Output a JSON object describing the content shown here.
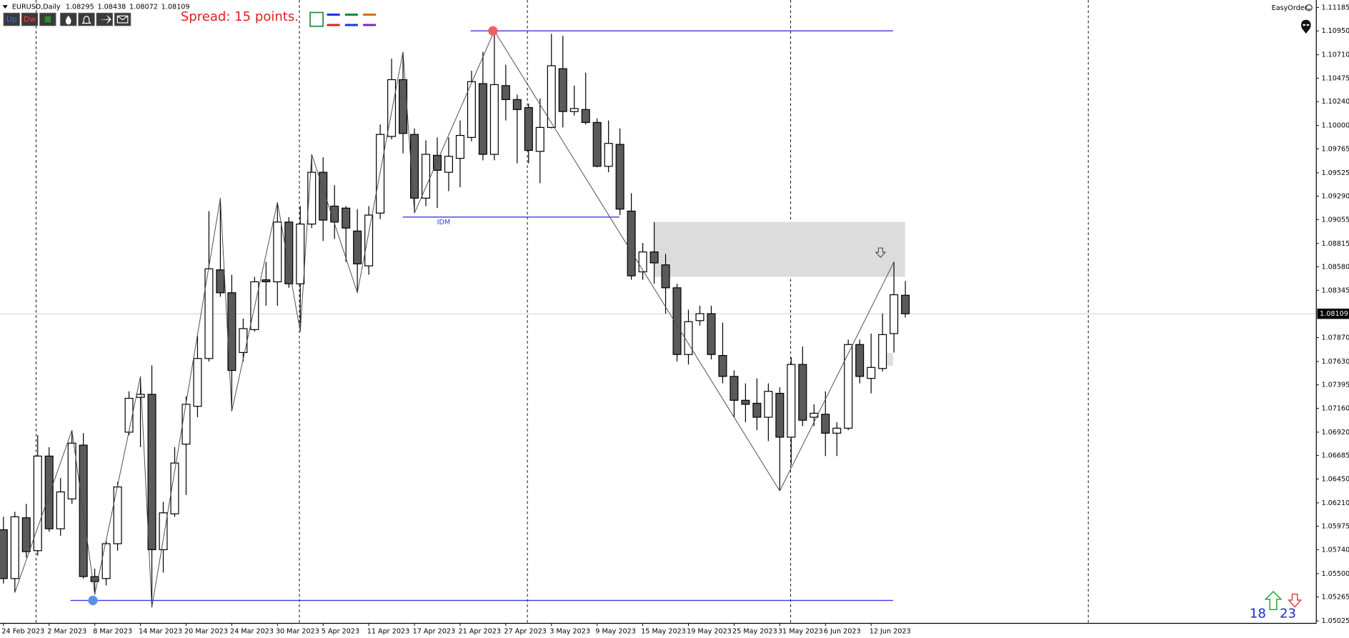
{
  "toolbar": {
    "symbol": "EURUSD,Daily",
    "buttons": [
      "Up",
      "Dw"
    ],
    "spread": "Spread: 15 points.",
    "easy_order": "EasyOrder",
    "bull_count": 18,
    "bear_count": 23
  },
  "chart_data": {
    "type": "candlestick",
    "categories": [
      "24 Feb 2023",
      null,
      null,
      null,
      "2 Mar 2023",
      null,
      null,
      null,
      "8 Mar 2023",
      null,
      null,
      null,
      "14 Mar 2023",
      null,
      null,
      null,
      "20 Mar 2023",
      null,
      null,
      null,
      "24 Mar 2023",
      null,
      null,
      null,
      "30 Mar 2023",
      null,
      null,
      null,
      "5 Apr 2023",
      null,
      null,
      null,
      "11 Apr 2023",
      null,
      null,
      null,
      "17 Apr 2023",
      null,
      null,
      null,
      "21 Apr 2023",
      null,
      null,
      null,
      "27 Apr 2023",
      null,
      null,
      null,
      "3 May 2023",
      null,
      null,
      null,
      "9 May 2023",
      null,
      null,
      null,
      "15 May 2023",
      null,
      null,
      null,
      "19 May 2023",
      null,
      null,
      null,
      "25 May 2023",
      null,
      null,
      null,
      "31 May 2023",
      null,
      null,
      null,
      "6 Jun 2023",
      null,
      null,
      null,
      "12 Jun 2023",
      null,
      null,
      null
    ],
    "open": [
      1.0594,
      1.0545,
      1.0606,
      1.0573,
      1.0668,
      1.0595,
      1.0625,
      1.0679,
      1.0547,
      1.0545,
      1.058,
      1.0692,
      1.0727,
      1.073,
      1.0574,
      1.061,
      1.068,
      1.0718,
      1.0766,
      1.0855,
      1.0832,
      1.0772,
      1.0795,
      1.0845,
      1.0843,
      1.0903,
      1.0841,
      1.0901,
      1.0953,
      1.0919,
      1.0917,
      1.0894,
      1.0859,
      1.0912,
      1.0989,
      1.1046,
      1.0991,
      1.0927,
      1.097,
      1.0953,
      1.0967,
      1.0988,
      1.1042,
      1.0971,
      1.104,
      1.1026,
      1.1018,
      1.0974,
      1.0998,
      1.1057,
      1.1014,
      1.1016,
      1.1003,
      1.0959,
      1.0981,
      1.0914,
      1.0853,
      1.0873,
      1.086,
      1.0837,
      1.077,
      1.0804,
      1.0811,
      1.0769,
      1.0748,
      1.0724,
      1.0721,
      1.0707,
      1.0731,
      1.0687,
      1.076,
      1.0707,
      1.071,
      1.0691,
      1.0696,
      1.078,
      1.0746,
      1.0756,
      1.0791,
      1.08295
    ],
    "high": [
      1.0607,
      1.0612,
      1.062,
      1.0689,
      1.0677,
      1.0646,
      1.0694,
      1.0691,
      1.0555,
      1.0583,
      1.0642,
      1.0733,
      1.0748,
      1.0759,
      1.0622,
      1.0677,
      1.0728,
      1.0789,
      1.0914,
      1.0927,
      1.085,
      1.0806,
      1.0848,
      1.0863,
      1.0923,
      1.0908,
      1.0919,
      1.0971,
      1.0968,
      1.094,
      1.0919,
      1.0916,
      1.0919,
      1.1001,
      1.1067,
      1.1074,
      1.0997,
      1.0985,
      1.0988,
      1.0988,
      1.1005,
      1.1055,
      1.1074,
      1.1095,
      1.1061,
      1.1031,
      1.1022,
      1.1027,
      1.1092,
      1.109,
      1.104,
      1.1053,
      1.1007,
      1.1005,
      1.0997,
      1.0932,
      1.0882,
      1.0903,
      1.0871,
      1.0841,
      1.0815,
      1.0819,
      1.0819,
      1.0802,
      1.0754,
      1.0741,
      1.0746,
      1.0741,
      1.0737,
      1.0767,
      1.0778,
      1.072,
      1.0733,
      1.0702,
      1.0785,
      1.0785,
      1.0791,
      1.0811,
      1.0863,
      1.08438
    ],
    "low": [
      1.054,
      1.0531,
      1.0566,
      1.0568,
      1.0592,
      1.0588,
      1.062,
      1.0545,
      1.0529,
      1.0538,
      1.0573,
      1.0689,
      1.0677,
      1.0516,
      1.0551,
      1.0607,
      1.0629,
      1.0707,
      1.0763,
      1.0828,
      1.0713,
      1.0763,
      1.0793,
      1.0819,
      1.0819,
      1.0837,
      1.0793,
      1.0897,
      1.0884,
      1.0886,
      1.0863,
      1.0832,
      1.085,
      1.0906,
      1.0986,
      1.0972,
      1.0912,
      1.0919,
      1.0917,
      1.0934,
      1.0938,
      1.0984,
      1.0965,
      1.0965,
      1.1005,
      1.0962,
      1.0962,
      1.0942,
      1.0997,
      1.0998,
      1.101,
      1.1001,
      1.0958,
      1.0953,
      1.091,
      1.0845,
      1.0845,
      1.0841,
      1.0811,
      1.0763,
      1.076,
      1.0799,
      1.0765,
      1.0741,
      1.0707,
      1.0702,
      1.0694,
      1.0683,
      1.0633,
      1.0659,
      1.0698,
      1.0698,
      1.0668,
      1.0668,
      1.0694,
      1.0741,
      1.0731,
      1.0753,
      1.0772,
      1.08072
    ],
    "close": [
      1.0545,
      1.0607,
      1.0572,
      1.0668,
      1.0595,
      1.0632,
      1.0681,
      1.0547,
      1.0542,
      1.058,
      1.0637,
      1.0726,
      1.073,
      1.0574,
      1.0611,
      1.0661,
      1.072,
      1.0766,
      1.0856,
      1.0832,
      1.0754,
      1.0796,
      1.0843,
      1.0843,
      1.0903,
      1.0841,
      1.0901,
      1.0953,
      1.0905,
      1.0903,
      1.0897,
      1.0861,
      1.091,
      1.0991,
      1.1046,
      1.0992,
      1.0927,
      1.0971,
      1.0955,
      1.0969,
      1.099,
      1.1044,
      1.0971,
      1.1041,
      1.1026,
      1.1016,
      1.0975,
      1.0998,
      1.106,
      1.1014,
      1.1017,
      1.1003,
      1.0959,
      1.0982,
      1.0916,
      1.0849,
      1.0873,
      1.0862,
      1.0837,
      1.077,
      1.0803,
      1.0811,
      1.077,
      1.0748,
      1.0724,
      1.072,
      1.0707,
      1.0733,
      1.0687,
      1.076,
      1.0704,
      1.0711,
      1.0691,
      1.0696,
      1.078,
      1.0748,
      1.0757,
      1.079,
      1.083,
      1.08109
    ],
    "bull_color": "#ffffff",
    "bear_color": "#5a5a5a",
    "ylim": [
      1.05,
      1.1126
    ],
    "yticks": [
      1.11185,
      {
        "value": 1.1095,
        "label": "1.10950"
      },
      {
        "value": 1.1071,
        "label": "1.10710"
      },
      1.10475,
      {
        "value": 1.1024,
        "label": "1.10240"
      },
      {
        "value": 1.1,
        "label": "1.10000"
      },
      1.09765,
      1.09525,
      {
        "value": 1.0929,
        "label": "1.09290"
      },
      1.09055,
      1.08815,
      {
        "value": 1.0858,
        "label": "1.08580"
      },
      1.08345,
      {
        "value": 1.0787,
        "label": "1.07870"
      },
      {
        "value": 1.0763,
        "label": "1.07630"
      },
      1.07395,
      {
        "value": 1.0716,
        "label": "1.07160"
      },
      {
        "value": 1.0692,
        "label": "1.06920"
      },
      1.06685,
      {
        "value": 1.0645,
        "label": "1.06450"
      },
      {
        "value": 1.0621,
        "label": "1.06210"
      },
      1.05975,
      {
        "value": 1.0574,
        "label": "1.05740"
      },
      {
        "value": 1.055,
        "label": "1.05500"
      },
      1.05265,
      1.05025
    ],
    "grid": false,
    "zigzag": {
      "color": "#4a4a5a",
      "values": [
        null,
        1.0531,
        null,
        null,
        null,
        null,
        1.0694,
        null,
        1.0529,
        null,
        null,
        null,
        1.0748,
        1.0516,
        null,
        null,
        null,
        null,
        null,
        1.0927,
        1.0713,
        null,
        null,
        null,
        1.0923,
        null,
        1.0793,
        1.0971,
        null,
        null,
        null,
        1.0832,
        null,
        null,
        null,
        1.1074,
        1.0912,
        null,
        null,
        null,
        null,
        null,
        null,
        1.1095,
        null,
        null,
        null,
        null,
        null,
        null,
        null,
        null,
        null,
        null,
        null,
        null,
        null,
        null,
        null,
        null,
        null,
        null,
        null,
        null,
        null,
        null,
        null,
        null,
        1.0633,
        null,
        null,
        null,
        null,
        null,
        null,
        null,
        null,
        null,
        1.0863,
        null
      ]
    },
    "levels": [
      {
        "value": 1.1095,
        "color": "#3a3ae0",
        "marker_color": "#f06060"
      },
      {
        "value": 1.0523,
        "color": "#3a3ae0",
        "marker_color": "#5b8fe8"
      },
      {
        "value": 1.0908,
        "color": "#3a3ae0",
        "label": "IDM"
      }
    ],
    "zone": {
      "top": 1.0903,
      "bottom": 1.0848,
      "color": "#dcdcdc"
    }
  }
}
